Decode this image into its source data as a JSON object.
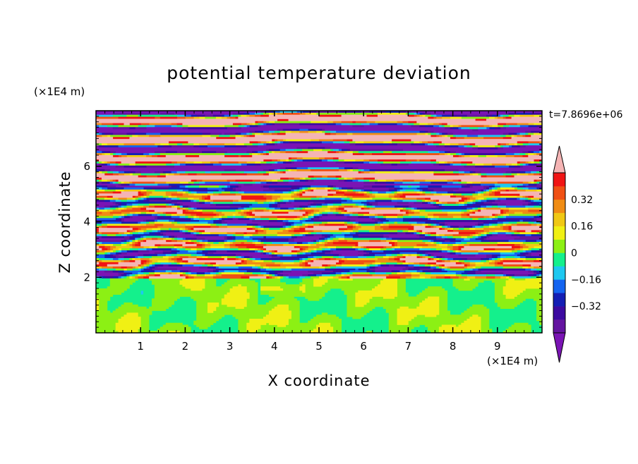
{
  "chart_data": {
    "type": "heatmap",
    "title": "potential temperature deviation",
    "time_label": "t=7.8696e+06",
    "xlabel": "X coordinate",
    "ylabel": "Z coordinate",
    "x_unit": "(×1E4 m)",
    "z_unit": "(×1E4 m)",
    "xlim": [
      0,
      10
    ],
    "zlim": [
      0,
      8
    ],
    "x_ticks": [
      1,
      2,
      3,
      4,
      5,
      6,
      7,
      8,
      9
    ],
    "x_tick_labels": [
      "1",
      "2",
      "3",
      "4",
      "5",
      "6",
      "7",
      "8",
      "9"
    ],
    "z_ticks": [
      2,
      4,
      6
    ],
    "z_tick_labels": [
      "2",
      "4",
      "6"
    ],
    "colorbar": {
      "levels": [
        -0.48,
        -0.4,
        -0.32,
        -0.24,
        -0.16,
        -0.08,
        0,
        0.08,
        0.16,
        0.24,
        0.32,
        0.4,
        0.48
      ],
      "tick_values": [
        0.32,
        0.16,
        0,
        -0.16,
        -0.32
      ],
      "tick_labels": [
        "0.32",
        "0.16",
        "0",
        "−0.16",
        "−0.32"
      ],
      "colors": [
        "#7a14b4",
        "#6414a0",
        "#3c0aa0",
        "#141eb4",
        "#1464f0",
        "#1ec8f0",
        "#14f08c",
        "#8cf014",
        "#f0f014",
        "#f0c814",
        "#f08c14",
        "#f05014",
        "#f01414",
        "#f5b4b4"
      ],
      "extend": "both"
    },
    "field_regions": [
      {
        "z_range": [
          0,
          2
        ],
        "dominant_levels": [
          "0",
          "0.08"
        ],
        "description_level": "weak"
      },
      {
        "z_range": [
          2,
          5.5
        ],
        "dominant_levels": [
          "-0.48",
          "0.48"
        ],
        "description_level": "strong mixed"
      },
      {
        "z_range": [
          5.5,
          8
        ],
        "dominant_levels": [
          "<-0.48",
          ">0.48"
        ],
        "description_level": "banded"
      }
    ]
  }
}
